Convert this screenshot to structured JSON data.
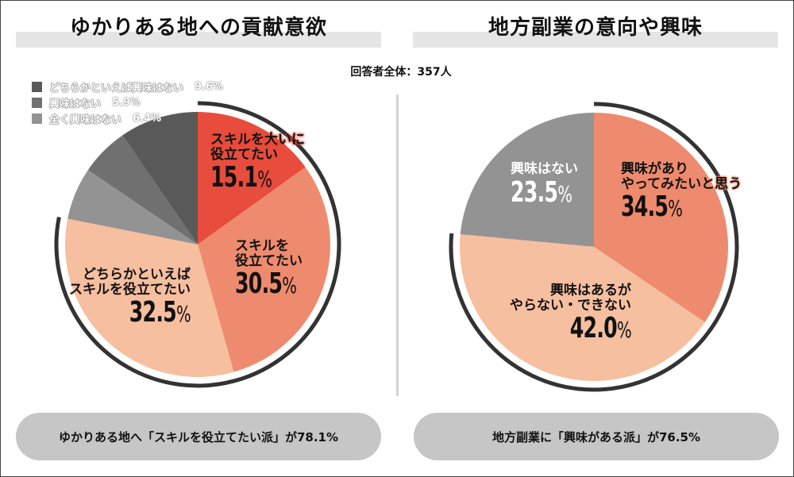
{
  "respondents": "回答者全体：357人",
  "colors": {
    "red": "#e74c3c",
    "salmon": "#ee8b6e",
    "peach": "#f6bfa0",
    "dark_gray": "#595959",
    "mid_gray": "#707070",
    "light_gray": "#939393",
    "arc": "#333333",
    "pill": "#c6c6c6",
    "title_band": "#e5e5e5"
  },
  "left": {
    "title": "ゆかりある地への貢献意欲",
    "legend": [
      {
        "label": "どちらかといえば興味はない",
        "value": "9.6%",
        "color": "#595959"
      },
      {
        "label": "興味はない",
        "value": "5.9%",
        "color": "#707070"
      },
      {
        "label": "全く興味はない",
        "value": "6.4%",
        "color": "#939393"
      }
    ],
    "slice_labels": [
      {
        "line1": "スキルを大いに",
        "line2": "役立てたい",
        "value": "15.1",
        "unit": "%"
      },
      {
        "line1": "スキルを",
        "line2": "役立てたい",
        "value": "30.5",
        "unit": "%"
      },
      {
        "line1": "どちらかといえば",
        "line2": "スキルを役立てたい",
        "value": "32.5",
        "unit": "%"
      }
    ],
    "summary": "ゆかりある地へ「スキルを役立てたい派」が78.1%"
  },
  "right": {
    "title": "地方副業の意向や興味",
    "slice_labels": [
      {
        "line1": "興味があり",
        "line2": "やってみたいと思う",
        "value": "34.5",
        "unit": "%"
      },
      {
        "line1": "興味はあるが",
        "line2": "やらない・できない",
        "value": "42.0",
        "unit": "%"
      },
      {
        "line1": "興味はない",
        "line2": "",
        "value": "23.5",
        "unit": "%"
      }
    ],
    "summary": "地方副業に「興味がある派」が76.5%"
  },
  "chart_data": [
    {
      "type": "pie",
      "title": "ゆかりある地への貢献意欲",
      "categories": [
        "スキルを大いに役立てたい",
        "スキルを役立てたい",
        "どちらかといえばスキルを役立てたい",
        "全く興味はない",
        "興味はない",
        "どちらかといえば興味はない"
      ],
      "values": [
        15.1,
        30.5,
        32.5,
        6.4,
        5.9,
        9.6
      ],
      "colors": [
        "#e74c3c",
        "#ee8b6e",
        "#f6bfa0",
        "#939393",
        "#707070",
        "#595959"
      ],
      "highlight_total": 78.1,
      "legend_position": "top-left"
    },
    {
      "type": "pie",
      "title": "地方副業の意向や興味",
      "categories": [
        "興味がありやってみたいと思う",
        "興味はあるがやらない・できない",
        "興味はない"
      ],
      "values": [
        34.5,
        42.0,
        23.5
      ],
      "colors": [
        "#ee8b6e",
        "#f6bfa0",
        "#939393"
      ],
      "highlight_total": 76.5
    }
  ]
}
